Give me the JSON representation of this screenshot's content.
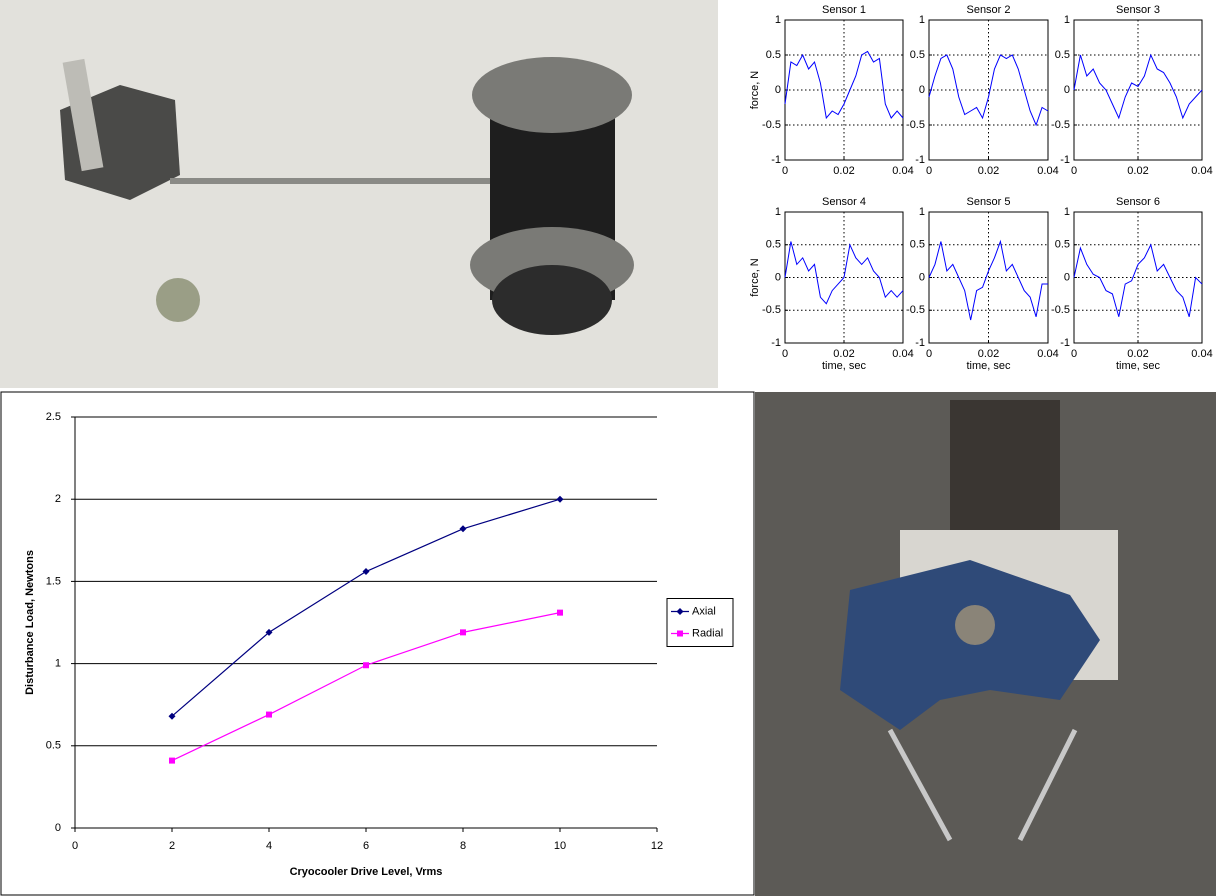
{
  "chart_data": [
    {
      "type": "line",
      "xlabel": "Cryocooler Drive Level, Vrms",
      "ylabel": "Disturbance Load, Newtons",
      "x": [
        2,
        4,
        6,
        8,
        10
      ],
      "series": [
        {
          "name": "Axial",
          "color": "#000080",
          "marker": "diamond",
          "values": [
            0.68,
            1.19,
            1.56,
            1.82,
            2.0
          ]
        },
        {
          "name": "Radial",
          "color": "#ff00ff",
          "marker": "square",
          "values": [
            0.41,
            0.69,
            0.99,
            1.19,
            1.31
          ]
        }
      ],
      "xlim": [
        0,
        12
      ],
      "xticks": [
        0,
        2,
        4,
        6,
        8,
        10,
        12
      ],
      "ylim": [
        0,
        2.5
      ],
      "yticks": [
        0,
        0.5,
        1,
        1.5,
        2,
        2.5
      ],
      "grid": "y",
      "legend": "right"
    },
    {
      "type": "line",
      "title": "Sensor 1",
      "ylabel": "force, N",
      "x": [
        0,
        0.002,
        0.004,
        0.006,
        0.008,
        0.01,
        0.012,
        0.014,
        0.016,
        0.018,
        0.02,
        0.022,
        0.024,
        0.026,
        0.028,
        0.03,
        0.032,
        0.034,
        0.036,
        0.038,
        0.04
      ],
      "series": [
        {
          "color": "#0000ff",
          "values": [
            -0.2,
            0.4,
            0.35,
            0.5,
            0.3,
            0.4,
            0.1,
            -0.4,
            -0.3,
            -0.35,
            -0.2,
            0.0,
            0.2,
            0.5,
            0.55,
            0.4,
            0.45,
            -0.2,
            -0.4,
            -0.3,
            -0.4
          ]
        }
      ],
      "xlim": [
        0,
        0.04
      ],
      "xticks": [
        0,
        0.02,
        0.04
      ],
      "ylim": [
        -1,
        1
      ],
      "yticks": [
        -1,
        -0.5,
        0,
        0.5,
        1
      ],
      "grid": true
    },
    {
      "type": "line",
      "title": "Sensor 2",
      "x": [
        0,
        0.002,
        0.004,
        0.006,
        0.008,
        0.01,
        0.012,
        0.014,
        0.016,
        0.018,
        0.02,
        0.022,
        0.024,
        0.026,
        0.028,
        0.03,
        0.032,
        0.034,
        0.036,
        0.038,
        0.04
      ],
      "series": [
        {
          "color": "#0000ff",
          "values": [
            -0.1,
            0.2,
            0.45,
            0.5,
            0.3,
            -0.1,
            -0.35,
            -0.3,
            -0.25,
            -0.4,
            -0.1,
            0.3,
            0.5,
            0.45,
            0.5,
            0.3,
            0.0,
            -0.3,
            -0.5,
            -0.25,
            -0.3
          ]
        }
      ],
      "xlim": [
        0,
        0.04
      ],
      "xticks": [
        0,
        0.02,
        0.04
      ],
      "ylim": [
        -1,
        1
      ],
      "yticks": [
        -1,
        -0.5,
        0,
        0.5,
        1
      ],
      "grid": true
    },
    {
      "type": "line",
      "title": "Sensor 3",
      "x": [
        0,
        0.002,
        0.004,
        0.006,
        0.008,
        0.01,
        0.012,
        0.014,
        0.016,
        0.018,
        0.02,
        0.022,
        0.024,
        0.026,
        0.028,
        0.03,
        0.032,
        0.034,
        0.036,
        0.038,
        0.04
      ],
      "series": [
        {
          "color": "#0000ff",
          "values": [
            0.0,
            0.5,
            0.2,
            0.3,
            0.1,
            0.0,
            -0.2,
            -0.4,
            -0.1,
            0.1,
            0.05,
            0.2,
            0.5,
            0.3,
            0.25,
            0.1,
            -0.1,
            -0.4,
            -0.2,
            -0.1,
            0.0
          ]
        }
      ],
      "xlim": [
        0,
        0.04
      ],
      "xticks": [
        0,
        0.02,
        0.04
      ],
      "ylim": [
        -1,
        1
      ],
      "yticks": [
        -1,
        -0.5,
        0,
        0.5,
        1
      ],
      "grid": true
    },
    {
      "type": "line",
      "title": "Sensor 4",
      "ylabel": "force, N",
      "xlabel": "time, sec",
      "x": [
        0,
        0.002,
        0.004,
        0.006,
        0.008,
        0.01,
        0.012,
        0.014,
        0.016,
        0.018,
        0.02,
        0.022,
        0.024,
        0.026,
        0.028,
        0.03,
        0.032,
        0.034,
        0.036,
        0.038,
        0.04
      ],
      "series": [
        {
          "color": "#0000ff",
          "values": [
            0.0,
            0.55,
            0.2,
            0.3,
            0.1,
            0.2,
            -0.3,
            -0.4,
            -0.2,
            -0.1,
            0.0,
            0.5,
            0.3,
            0.2,
            0.3,
            0.1,
            0.0,
            -0.3,
            -0.2,
            -0.3,
            -0.2
          ]
        }
      ],
      "xlim": [
        0,
        0.04
      ],
      "xticks": [
        0,
        0.02,
        0.04
      ],
      "ylim": [
        -1,
        1
      ],
      "yticks": [
        -1,
        -0.5,
        0,
        0.5,
        1
      ],
      "grid": true
    },
    {
      "type": "line",
      "title": "Sensor 5",
      "xlabel": "time, sec",
      "x": [
        0,
        0.002,
        0.004,
        0.006,
        0.008,
        0.01,
        0.012,
        0.014,
        0.016,
        0.018,
        0.02,
        0.022,
        0.024,
        0.026,
        0.028,
        0.03,
        0.032,
        0.034,
        0.036,
        0.038,
        0.04
      ],
      "series": [
        {
          "color": "#0000ff",
          "values": [
            0.0,
            0.2,
            0.55,
            0.1,
            0.2,
            0.0,
            -0.2,
            -0.65,
            -0.2,
            -0.15,
            0.1,
            0.3,
            0.55,
            0.1,
            0.2,
            0.0,
            -0.2,
            -0.3,
            -0.6,
            -0.1,
            -0.1
          ]
        }
      ],
      "xlim": [
        0,
        0.04
      ],
      "xticks": [
        0,
        0.02,
        0.04
      ],
      "ylim": [
        -1,
        1
      ],
      "yticks": [
        -1,
        -0.5,
        0,
        0.5,
        1
      ],
      "grid": true
    },
    {
      "type": "line",
      "title": "Sensor 6",
      "xlabel": "time, sec",
      "x": [
        0,
        0.002,
        0.004,
        0.006,
        0.008,
        0.01,
        0.012,
        0.014,
        0.016,
        0.018,
        0.02,
        0.022,
        0.024,
        0.026,
        0.028,
        0.03,
        0.032,
        0.034,
        0.036,
        0.038,
        0.04
      ],
      "series": [
        {
          "color": "#0000ff",
          "values": [
            0.0,
            0.45,
            0.2,
            0.05,
            0.0,
            -0.2,
            -0.25,
            -0.6,
            -0.1,
            -0.05,
            0.2,
            0.3,
            0.5,
            0.1,
            0.2,
            0.0,
            -0.2,
            -0.3,
            -0.6,
            0.0,
            -0.1
          ]
        }
      ],
      "xlim": [
        0,
        0.04
      ],
      "xticks": [
        0,
        0.02,
        0.04
      ],
      "ylim": [
        -1,
        1
      ],
      "yticks": [
        -1,
        -0.5,
        0,
        0.5,
        1
      ],
      "grid": true
    }
  ]
}
